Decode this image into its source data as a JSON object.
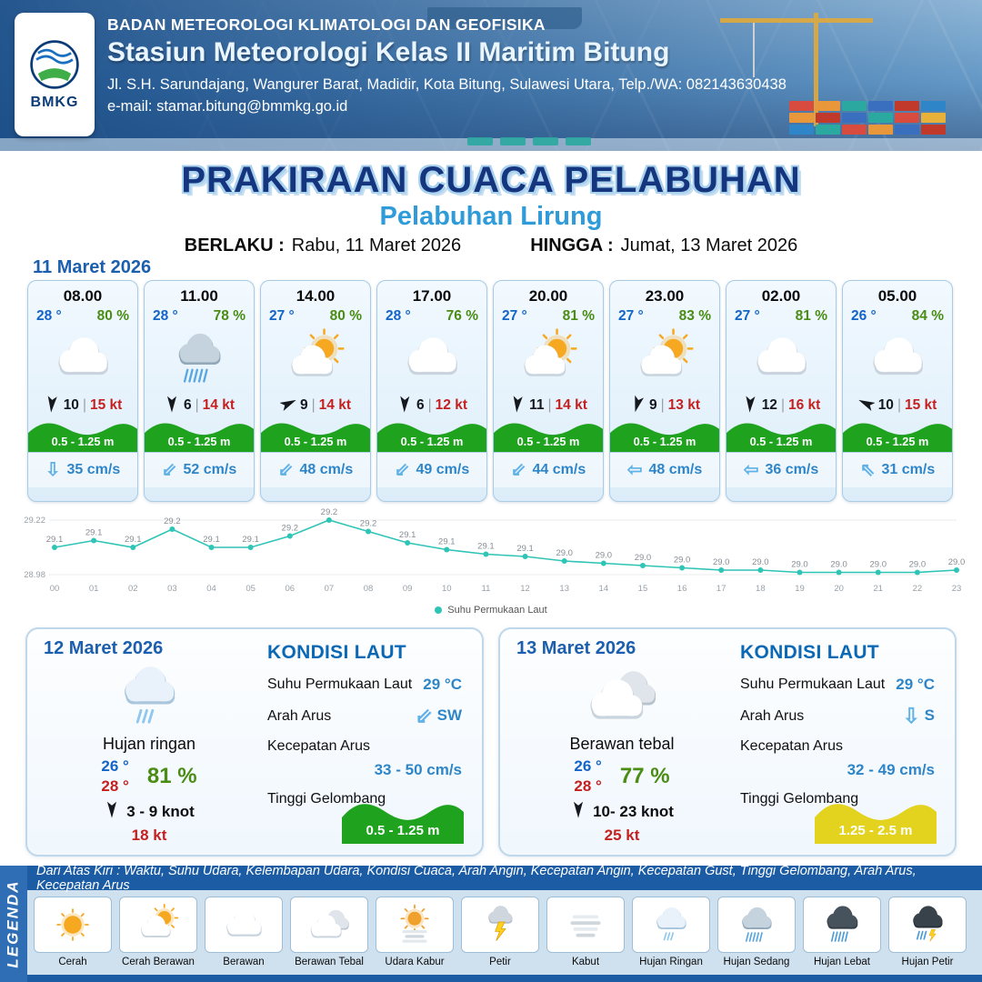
{
  "header": {
    "agency": "BADAN METEOROLOGI KLIMATOLOGI DAN GEOFISIKA",
    "station": "Stasiun Meteorologi Kelas II Maritim Bitung",
    "address": "Jl. S.H. Sarundajang, Wangurer Barat, Madidir, Kota Bitung, Sulawesi Utara, Telp./WA: 082143630438",
    "email": "e-mail: stamar.bitung@bmmkg.go.id",
    "logo_text": "BMKG"
  },
  "title": {
    "main": "PRAKIRAAN CUACA PELABUHAN",
    "subtitle": "Pelabuhan Lirung",
    "valid_from_label": "BERLAKU :",
    "valid_from": "Rabu, 11 Maret 2026",
    "valid_to_label": "HINGGA :",
    "valid_to": "Jumat, 13 Maret 2026"
  },
  "forecast": {
    "date": "11 Maret 2026",
    "cards": [
      {
        "time": "08.00",
        "temp": "28 °",
        "humidity": "80 %",
        "icon": "berawan",
        "wind_rot": 185,
        "wind_speed": "10",
        "gust": "15 kt",
        "wave_height": "0.5 - 1.25 m",
        "wave_color": "#1fa31f",
        "current_arrow": "⇩",
        "current_speed": "35 cm/s"
      },
      {
        "time": "11.00",
        "temp": "28 °",
        "humidity": "78 %",
        "icon": "hujan-sedang",
        "wind_rot": 180,
        "wind_speed": "6",
        "gust": "14 kt",
        "wave_height": "0.5 - 1.25 m",
        "wave_color": "#1fa31f",
        "current_arrow": "⇙",
        "current_speed": "52 cm/s"
      },
      {
        "time": "14.00",
        "temp": "27 °",
        "humidity": "80 %",
        "icon": "cerah-berawan",
        "wind_rot": 65,
        "wind_speed": "9",
        "gust": "14 kt",
        "wave_height": "0.5 - 1.25 m",
        "wave_color": "#1fa31f",
        "current_arrow": "⇙",
        "current_speed": "48 cm/s"
      },
      {
        "time": "17.00",
        "temp": "28 °",
        "humidity": "76 %",
        "icon": "berawan",
        "wind_rot": 182,
        "wind_speed": "6",
        "gust": "12 kt",
        "wave_height": "0.5 - 1.25 m",
        "wave_color": "#1fa31f",
        "current_arrow": "⇙",
        "current_speed": "49 cm/s"
      },
      {
        "time": "20.00",
        "temp": "27 °",
        "humidity": "81 %",
        "icon": "cerah-berawan",
        "wind_rot": 185,
        "wind_speed": "11",
        "gust": "14 kt",
        "wave_height": "0.5 - 1.25 m",
        "wave_color": "#1fa31f",
        "current_arrow": "⇙",
        "current_speed": "44 cm/s"
      },
      {
        "time": "23.00",
        "temp": "27 °",
        "humidity": "83 %",
        "icon": "cerah-berawan",
        "wind_rot": 195,
        "wind_speed": "9",
        "gust": "13 kt",
        "wave_height": "0.5 - 1.25 m",
        "wave_color": "#1fa31f",
        "current_arrow": "⇦",
        "current_speed": "48 cm/s"
      },
      {
        "time": "02.00",
        "temp": "27 °",
        "humidity": "81 %",
        "icon": "berawan",
        "wind_rot": 183,
        "wind_speed": "12",
        "gust": "16 kt",
        "wave_height": "0.5 - 1.25 m",
        "wave_color": "#1fa31f",
        "current_arrow": "⇦",
        "current_speed": "36 cm/s"
      },
      {
        "time": "05.00",
        "temp": "26 °",
        "humidity": "84 %",
        "icon": "berawan",
        "wind_rot": 295,
        "wind_speed": "10",
        "gust": "15 kt",
        "wave_height": "0.5 - 1.25 m",
        "wave_color": "#1fa31f",
        "current_arrow": "⇖",
        "current_speed": "31 cm/s"
      }
    ]
  },
  "chart_data": {
    "type": "line",
    "series_name": "Suhu Permukaan Laut",
    "x": [
      "00",
      "01",
      "02",
      "03",
      "04",
      "05",
      "06",
      "07",
      "08",
      "09",
      "10",
      "11",
      "12",
      "13",
      "14",
      "15",
      "16",
      "17",
      "18",
      "19",
      "20",
      "21",
      "22",
      "23"
    ],
    "values": [
      29.1,
      29.13,
      29.1,
      29.18,
      29.1,
      29.1,
      29.15,
      29.22,
      29.17,
      29.12,
      29.09,
      29.07,
      29.06,
      29.04,
      29.03,
      29.02,
      29.01,
      29.0,
      29.0,
      28.99,
      28.99,
      28.99,
      28.99,
      29.0
    ],
    "labels": [
      "29.1",
      "29.1",
      "29.1",
      "29.2",
      "29.1",
      "29.1",
      "29.2",
      "29.2",
      "29.2",
      "29.1",
      "29.1",
      "29.1",
      "29.1",
      "29.0",
      "29.0",
      "29.0",
      "29.0",
      "29.0",
      "29.0",
      "29.0",
      "29.0",
      "29.0",
      "29.0",
      "29.0"
    ],
    "ylim": [
      28.98,
      29.22
    ],
    "line_color": "#2ec4b6",
    "grid": true,
    "legend_position": "bottom"
  },
  "day_cards": [
    {
      "date": "12 Maret 2026",
      "icon": "hujan-ringan",
      "condition": "Hujan ringan",
      "temp_min": "26 °",
      "temp_max": "28 °",
      "humidity": "81 %",
      "wind_rot": 180,
      "wind_range": "3 - 9 knot",
      "gust": "18 kt",
      "sea": {
        "heading": "KONDISI LAUT",
        "sst_label": "Suhu Permukaan Laut",
        "sst": "29 °C",
        "dir_label": "Arah Arus",
        "dir_arrow": "⇙",
        "dir": "SW",
        "speed_label": "Kecepatan Arus",
        "speed": "33 - 50 cm/s",
        "wave_label": "Tinggi Gelombang",
        "wave": "0.5 - 1.25 m",
        "wave_color": "#1fa31f"
      }
    },
    {
      "date": "13 Maret 2026",
      "icon": "berawan-tebal",
      "condition": "Berawan tebal",
      "temp_min": "26 °",
      "temp_max": "28 °",
      "humidity": "77 %",
      "wind_rot": 180,
      "wind_range": "10- 23 knot",
      "gust": "25 kt",
      "sea": {
        "heading": "KONDISI LAUT",
        "sst_label": "Suhu Permukaan Laut",
        "sst": "29 °C",
        "dir_label": "Arah Arus",
        "dir_arrow": "⇩",
        "dir": "S",
        "speed_label": "Kecepatan Arus",
        "speed": "32 - 49 cm/s",
        "wave_label": "Tinggi Gelombang",
        "wave": "1.25 - 2.5 m",
        "wave_color": "#e3d31f"
      }
    }
  ],
  "legend": {
    "vertical_label": "LEGENDA",
    "note": "Dari Atas Kiri : Waktu, Suhu Udara, Kelembapan Udara, Kondisi Cuaca, Arah Angin, Kecepatan Angin, Kecepatan Gust, Tinggi Gelombang, Arah Arus, Kecepatan Arus",
    "items": [
      {
        "icon": "cerah",
        "label": "Cerah"
      },
      {
        "icon": "cerah-berawan",
        "label": "Cerah Berawan"
      },
      {
        "icon": "berawan",
        "label": "Berawan"
      },
      {
        "icon": "berawan-tebal",
        "label": "Berawan Tebal"
      },
      {
        "icon": "udara-kabur",
        "label": "Udara Kabur"
      },
      {
        "icon": "petir",
        "label": "Petir"
      },
      {
        "icon": "kabut",
        "label": "Kabut"
      },
      {
        "icon": "hujan-ringan",
        "label": "Hujan Ringan"
      },
      {
        "icon": "hujan-sedang",
        "label": "Hujan Sedang"
      },
      {
        "icon": "hujan-lebat",
        "label": "Hujan Lebat"
      },
      {
        "icon": "hujan-petir",
        "label": "Hujan Petir"
      }
    ]
  }
}
